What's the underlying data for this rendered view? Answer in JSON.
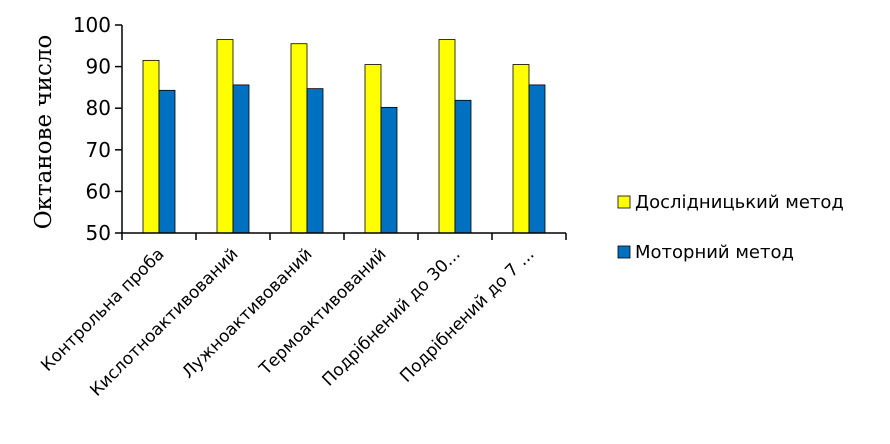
{
  "chart_data": {
    "type": "bar",
    "categories": [
      "Контрольна проба",
      "Кислотноактивований",
      "Лужноактивований",
      "Термоактивований",
      "Подрібнений до 30...",
      "Подрібнений до 7 ..."
    ],
    "series": [
      {
        "name": "Дослідницький метод",
        "values": [
          91.5,
          96.5,
          95.5,
          90.5,
          96.5,
          90.5
        ],
        "color": "#ffff00"
      },
      {
        "name": "Моторний метод",
        "values": [
          84.3,
          85.6,
          84.7,
          80.2,
          81.9,
          85.6
        ],
        "color": "#0070c0"
      }
    ],
    "ylabel": "Октанове число",
    "xlabel": "",
    "ylim": [
      50,
      100
    ],
    "yticks": [
      50,
      60,
      70,
      80,
      90,
      100
    ],
    "grid": false,
    "legend_position": "right"
  }
}
